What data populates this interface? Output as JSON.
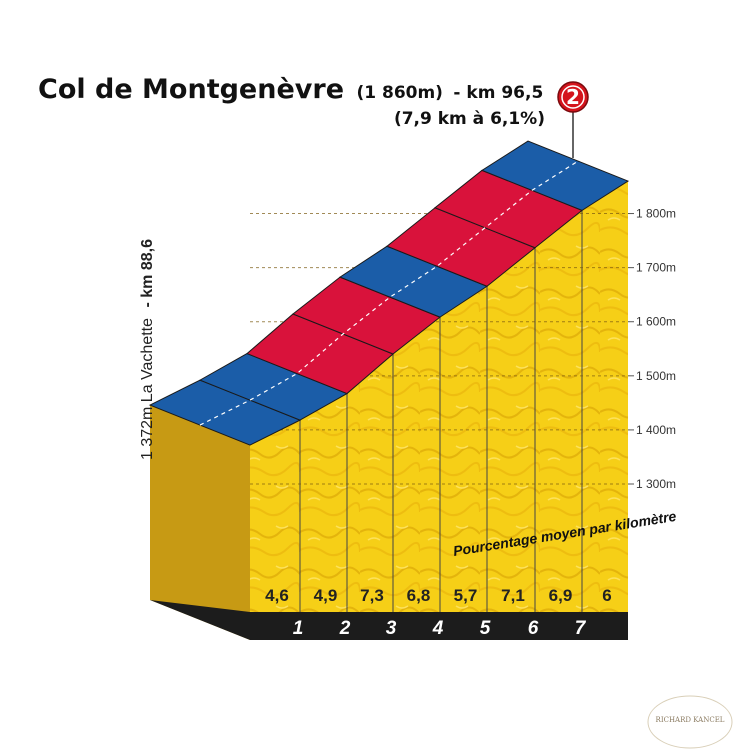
{
  "title": {
    "name": "Col de Montgenèvre",
    "altitude": "(1 860m)",
    "km": "- km 96,5",
    "stats": "(7,9 km à 6,1%)"
  },
  "category_badge": {
    "label": "2",
    "color": "#d4141c"
  },
  "start": {
    "label": "1 372m La Vachette",
    "km": "- km 88,6"
  },
  "note": "Pourcentage moyen par kilomètre",
  "watermark": "RICHARD KANCEL",
  "colors": {
    "top_blue": "#1b5da8",
    "top_red": "#d9123b",
    "wall_yellow": "#f6cf17",
    "wall_yellow_dark": "#ebbf0c",
    "side": "#c79a14",
    "base": "#1c1c1c"
  },
  "chart_data": {
    "type": "area",
    "title": "Col de Montgenèvre",
    "x_unit": "km",
    "y_unit": "m",
    "segments": [
      {
        "km": "1",
        "grade": "4,6",
        "grade_value": 4.6
      },
      {
        "km": "2",
        "grade": "4,9",
        "grade_value": 4.9
      },
      {
        "km": "3",
        "grade": "7,3",
        "grade_value": 7.3
      },
      {
        "km": "4",
        "grade": "6,8",
        "grade_value": 6.8
      },
      {
        "km": "5",
        "grade": "5,7",
        "grade_value": 5.7
      },
      {
        "km": "6",
        "grade": "7,1",
        "grade_value": 7.1
      },
      {
        "km": "7",
        "grade": "6,9",
        "grade_value": 6.9
      },
      {
        "km": "",
        "grade": "6",
        "grade_value": 6.0
      }
    ],
    "y_ticks": [
      "1 300m",
      "1 400m",
      "1 500m",
      "1 600m",
      "1 700m",
      "1 800m"
    ],
    "y_tick_values": [
      1300,
      1400,
      1500,
      1600,
      1700,
      1800
    ],
    "start_altitude": 1372,
    "summit_altitude": 1860,
    "distance_km": 7.9,
    "average_grade": "6,1%"
  }
}
